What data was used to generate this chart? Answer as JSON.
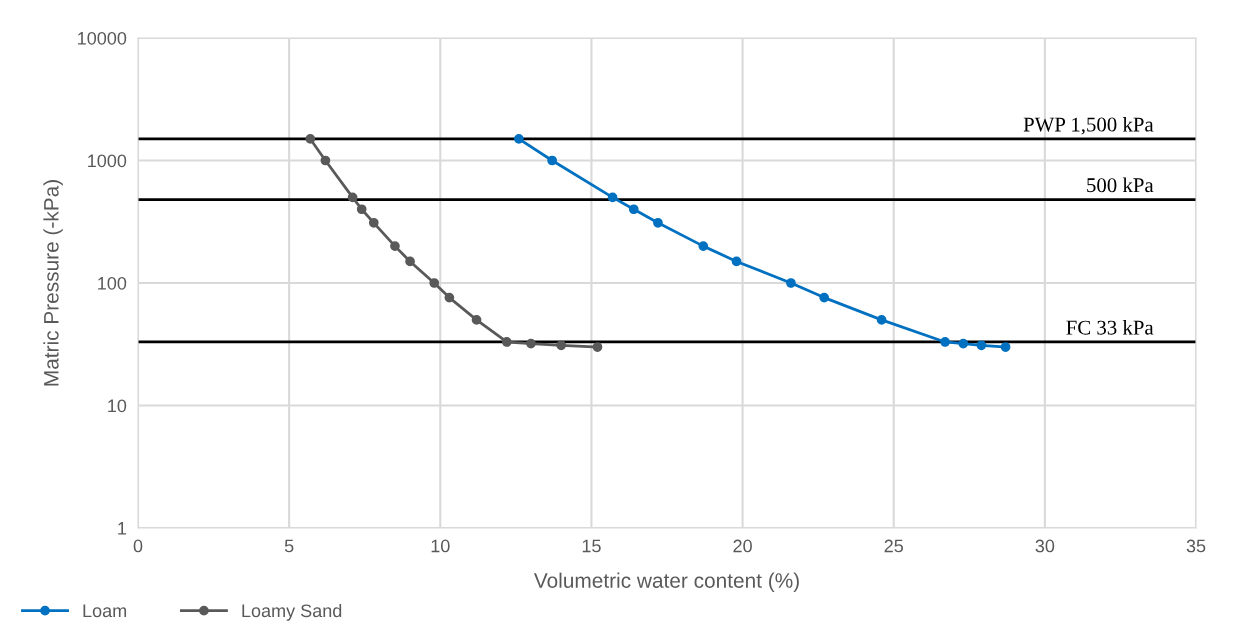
{
  "chart_data": {
    "type": "line",
    "xlabel": "Volumetric water content (%)",
    "ylabel": "Matric Pressure (-kPa)",
    "log": "y",
    "xlim": [
      0,
      35
    ],
    "xticks": [
      0,
      5,
      10,
      15,
      20,
      25,
      30,
      35
    ],
    "ylim": [
      1,
      10000
    ],
    "yticks": [
      1,
      10,
      100,
      1000,
      10000
    ],
    "grid": true,
    "legend": "bottom left",
    "marker": "circle",
    "line_style": "solid",
    "series": [
      {
        "name": "Loam",
        "color": "#0070c0",
        "x": [
          12.6,
          13.7,
          15.7,
          16.4,
          17.2,
          18.7,
          19.8,
          21.6,
          22.7,
          24.6,
          26.7,
          27.3,
          27.9,
          28.7
        ],
        "values": [
          1500,
          1000,
          500,
          400,
          310,
          200,
          150,
          100,
          76,
          50,
          33,
          32,
          31,
          30
        ]
      },
      {
        "name": "Loamy Sand",
        "color": "#595959",
        "x": [
          5.7,
          6.2,
          7.1,
          7.4,
          7.8,
          8.5,
          9.0,
          9.8,
          10.3,
          11.2,
          12.2,
          13.0,
          14.0,
          15.2
        ],
        "values": [
          1500,
          1000,
          500,
          400,
          310,
          200,
          150,
          100,
          76,
          50,
          33,
          32,
          31,
          30
        ]
      }
    ],
    "ref_lines": [
      {
        "axis": "y",
        "value": 1500,
        "label": "PWP 1,500 kPa",
        "color": "#000000"
      },
      {
        "axis": "y",
        "value": 480,
        "label": "500 kPa",
        "color": "#000000"
      },
      {
        "axis": "y",
        "value": 33,
        "label": "FC 33 kPa",
        "color": "#000000"
      }
    ]
  }
}
